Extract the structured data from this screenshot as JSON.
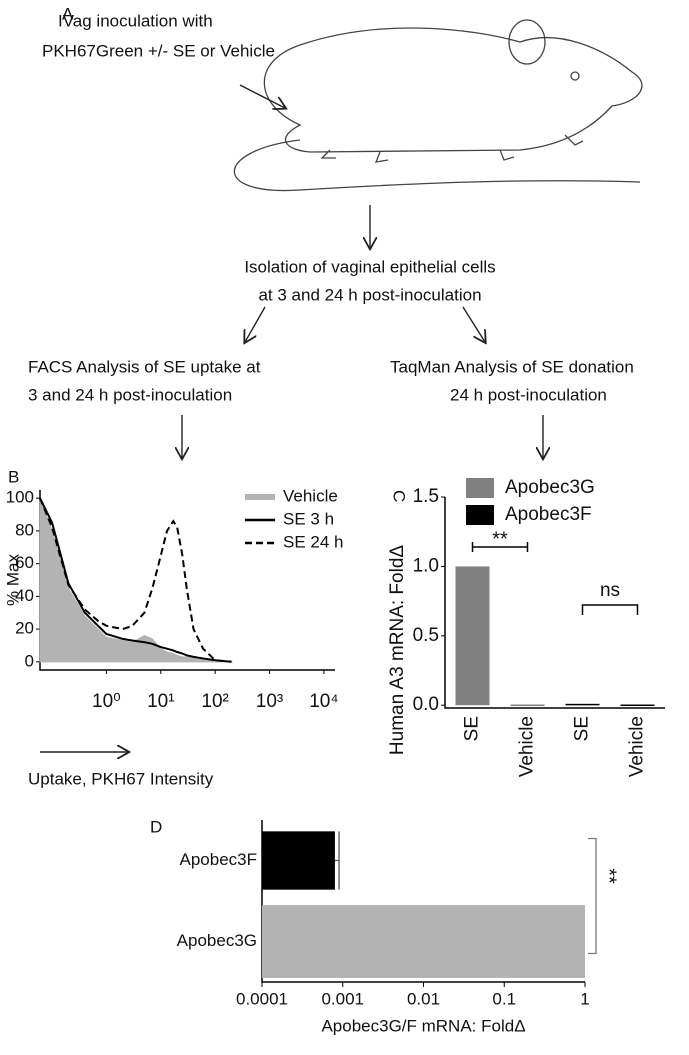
{
  "panel_a": {
    "label": "A",
    "inoculation": [
      "IVag inoculation with",
      "PKH67Green +/- SE or Vehicle"
    ],
    "isolation": [
      "Isolation of vaginal epithelial cells",
      "at 3 and 24 h post-inoculation"
    ],
    "facs": [
      "FACS Analysis of SE uptake at",
      "3 and 24 h post-inoculation"
    ],
    "taqman": [
      "TaqMan Analysis of SE donation",
      "24 h post-inoculation"
    ]
  },
  "chart_data": [
    {
      "type": "line",
      "label": "B",
      "ylabel": "% Max",
      "xlabel": "Uptake, PKH67 Intensity",
      "xscale": "log",
      "x": [
        0.06,
        0.1,
        0.2,
        0.4,
        0.7,
        1,
        2,
        3,
        5,
        7,
        10,
        13,
        17,
        20,
        25,
        30,
        40,
        60,
        100,
        200
      ],
      "series": [
        {
          "name": "Vehicle",
          "color": "#b3b3b3",
          "fill": true,
          "values": [
            100,
            80,
            45,
            28,
            20,
            15,
            13,
            12,
            16,
            14,
            8,
            6,
            5,
            4,
            3,
            3,
            2,
            1,
            0,
            0
          ]
        },
        {
          "name": "SE  3 h",
          "color": "#000000",
          "values": [
            100,
            85,
            48,
            30,
            22,
            17,
            14,
            13,
            12,
            11,
            9,
            8,
            7,
            6,
            5,
            4,
            3,
            2,
            1,
            0
          ]
        },
        {
          "name": "SE  24 h",
          "color": "#000000",
          "dashed": true,
          "values": [
            100,
            82,
            47,
            32,
            25,
            22,
            20,
            22,
            30,
            45,
            65,
            80,
            86,
            82,
            65,
            45,
            20,
            8,
            1,
            0
          ]
        }
      ],
      "xlim": [
        0.06,
        16000
      ],
      "xticks": [
        {
          "value": 1,
          "label": "10⁰"
        },
        {
          "value": 10,
          "label": "10¹"
        },
        {
          "value": 100,
          "label": "10²"
        },
        {
          "value": 1000,
          "label": "10³"
        },
        {
          "value": 10000,
          "label": "10⁴"
        }
      ],
      "ylim": [
        -5,
        105
      ],
      "yticks": [
        0,
        20,
        40,
        60,
        80,
        100
      ]
    },
    {
      "type": "bar",
      "label": "C",
      "ylabel": "Human A3 mRNA: FoldΔ",
      "categories": [
        "SE",
        "Vehicle",
        "SE",
        "Vehicle"
      ],
      "series": [
        {
          "name": "Apobec3G",
          "color": "#808080",
          "values": [
            1.0,
            0.005,
            null,
            null
          ]
        },
        {
          "name": "Apobec3F",
          "color": "#000000",
          "values": [
            null,
            null,
            0.01,
            0.005
          ]
        }
      ],
      "ylim": [
        -0.02,
        1.5
      ],
      "yticks": [
        {
          "value": 0,
          "label": "0.0"
        },
        {
          "value": 0.5,
          "label": "0.5"
        },
        {
          "value": 1,
          "label": "1.0"
        },
        {
          "value": 1.5,
          "label": "1.5"
        }
      ],
      "annotations": [
        "**",
        "ns"
      ]
    },
    {
      "type": "bar",
      "orientation": "horizontal",
      "label": "D",
      "xlabel": "Apobec3G/F mRNA: FoldΔ",
      "xscale": "log",
      "categories": [
        "Apobec3F",
        "Apobec3G"
      ],
      "values": [
        0.0008,
        1
      ],
      "errors": [
        0.0001,
        null
      ],
      "colors": [
        "#000000",
        "#b3b3b3"
      ],
      "xlim": [
        0.0001,
        1
      ],
      "xticks": [
        0.0001,
        0.001,
        0.01,
        0.1,
        1
      ],
      "annotations": [
        "**"
      ]
    }
  ]
}
